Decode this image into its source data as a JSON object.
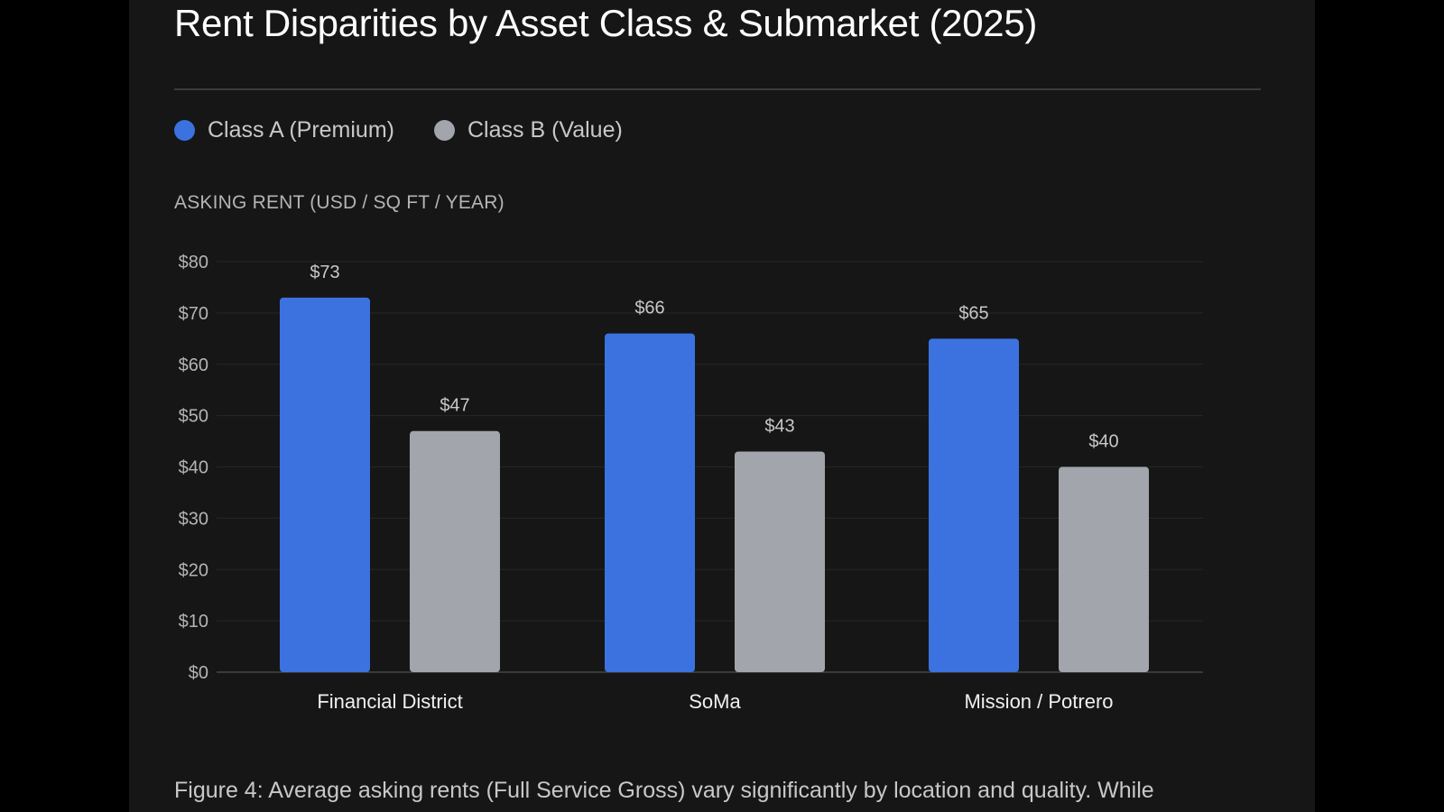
{
  "header": {
    "title": "Rent Disparities by Asset Class & Submarket (2025)"
  },
  "legend": [
    {
      "label": "Class A (Premium)",
      "color": "#3b72e0"
    },
    {
      "label": "Class B (Value)",
      "color": "#a2a5ab"
    }
  ],
  "axis_caption": "ASKING RENT (USD / SQ FT / YEAR)",
  "chart_data": {
    "type": "bar",
    "title": "Rent Disparities by Asset Class & Submarket (2025)",
    "xlabel": "",
    "ylabel": "ASKING RENT (USD / SQ FT / YEAR)",
    "ylim": [
      0,
      80
    ],
    "yticks": [
      0,
      10,
      20,
      30,
      40,
      50,
      60,
      70,
      80
    ],
    "ytick_labels": [
      "$0",
      "$10",
      "$20",
      "$30",
      "$40",
      "$50",
      "$60",
      "$70",
      "$80"
    ],
    "grid": true,
    "legend_position": "top-left",
    "categories": [
      "Financial District",
      "SoMa",
      "Mission / Potrero"
    ],
    "series": [
      {
        "name": "Class A (Premium)",
        "color": "#3b72e0",
        "values": [
          73,
          66,
          65
        ],
        "labels": [
          "$73",
          "$66",
          "$65"
        ]
      },
      {
        "name": "Class B (Value)",
        "color": "#a2a5ab",
        "values": [
          47,
          43,
          40
        ],
        "labels": [
          "$47",
          "$43",
          "$40"
        ]
      }
    ]
  },
  "caption": "Figure 4: Average asking rents (Full Service Gross) vary significantly by location and quality. While"
}
